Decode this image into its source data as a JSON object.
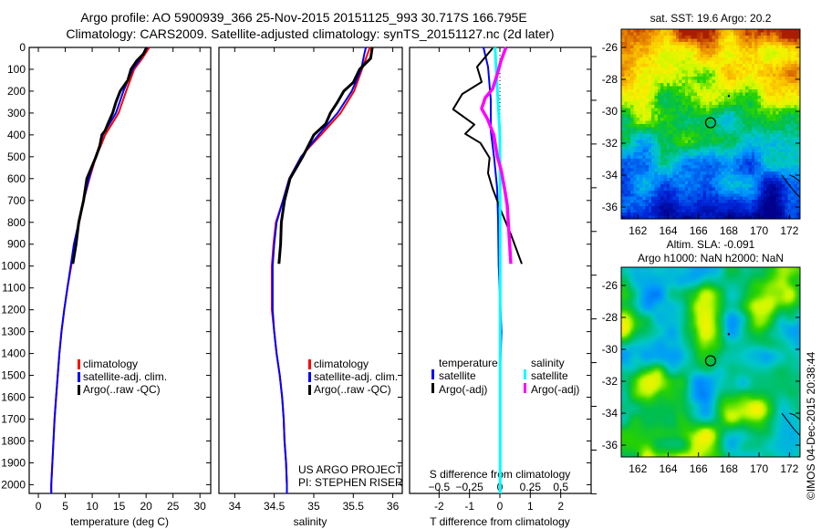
{
  "title": {
    "line1": "Argo profile: AO 5900939_366 25-Nov-2015 20151125_993 30.717S 166.795E",
    "line2": "Climatology: CARS2009. Satellite-adjusted climatology: synTS_20151127.nc (2d later)"
  },
  "colors": {
    "climatology": "#ff0000",
    "satellite": "#0000ff",
    "argo": "#000000",
    "sal_satellite": "#00ffff",
    "sal_argo": "#ff00ff"
  },
  "chart_data": [
    {
      "type": "line",
      "id": "temperature",
      "xlabel": "temperature (deg C)",
      "ylabel": "depth",
      "xlim": [
        -1.7,
        32
      ],
      "ylim": [
        0,
        2040
      ],
      "xticks": [
        0,
        5,
        10,
        15,
        20,
        25,
        30
      ],
      "yticks": [
        0,
        100,
        200,
        300,
        400,
        500,
        600,
        700,
        800,
        900,
        1000,
        1100,
        1200,
        1300,
        1400,
        1500,
        1600,
        1700,
        1800,
        1900,
        2000
      ],
      "legend": [
        "climatology",
        "satellite-adj. clim.",
        "Argo(..raw -QC)"
      ],
      "series": [
        {
          "name": "climatology",
          "color": "#ff0000",
          "depth": [
            0,
            50,
            100,
            200,
            300,
            400,
            450,
            500,
            600,
            700,
            800,
            900,
            1000,
            1100,
            1200,
            1300,
            1400,
            1500,
            1600,
            1700,
            1800,
            1900,
            2000,
            2040
          ],
          "values": [
            20.6,
            19.3,
            17.8,
            16.3,
            14.9,
            12.4,
            11.6,
            10.7,
            9.5,
            8.4,
            7.6,
            6.7,
            6.1,
            5.4,
            4.8,
            4.3,
            3.9,
            3.6,
            3.3,
            3.0,
            2.8,
            2.6,
            2.4,
            2.4
          ]
        },
        {
          "name": "satellite-adj. clim.",
          "color": "#0000ff",
          "depth": [
            0,
            50,
            100,
            200,
            300,
            400,
            450,
            500,
            600,
            700,
            800,
            900,
            1000,
            1100,
            1200,
            1300,
            1400,
            1500,
            1600,
            1700,
            1800,
            1900,
            2000,
            2040
          ],
          "values": [
            20.3,
            19.0,
            17.5,
            15.8,
            14.4,
            12.0,
            11.4,
            10.6,
            9.4,
            8.4,
            7.5,
            6.6,
            6.0,
            5.4,
            4.8,
            4.3,
            3.9,
            3.6,
            3.3,
            3.0,
            2.8,
            2.6,
            2.4,
            2.4
          ]
        },
        {
          "name": "Argo(..raw -QC)",
          "color": "#000000",
          "depth": [
            0,
            30,
            60,
            100,
            150,
            200,
            250,
            300,
            350,
            380,
            400,
            450,
            500,
            600,
            700,
            800,
            900,
            990
          ],
          "values": [
            20.1,
            19.5,
            18.3,
            17.2,
            16.6,
            15.2,
            14.4,
            13.8,
            12.9,
            12.4,
            11.8,
            11.4,
            10.7,
            9.0,
            8.4,
            7.5,
            7.0,
            6.4
          ]
        }
      ]
    },
    {
      "type": "line",
      "id": "salinity",
      "xlabel": "salinity",
      "xlim": [
        33.8,
        36.12
      ],
      "ylim": [
        0,
        2040
      ],
      "xticks": [
        "34",
        "34.5",
        "35",
        "35.5",
        "36"
      ],
      "legend": [
        "climatology",
        "satellite-adj. clim.",
        "Argo(..raw -QC)"
      ],
      "series": [
        {
          "name": "climatology",
          "color": "#ff0000",
          "depth": [
            0,
            100,
            200,
            300,
            400,
            450,
            500,
            600,
            700,
            800,
            900,
            1000,
            1100,
            1200,
            1300,
            1400,
            1500,
            1600,
            1700,
            1800,
            1900,
            2000,
            2040
          ],
          "values": [
            35.71,
            35.61,
            35.51,
            35.34,
            35.09,
            34.96,
            34.84,
            34.69,
            34.61,
            34.52,
            34.49,
            34.47,
            34.47,
            34.47,
            34.5,
            34.53,
            34.57,
            34.6,
            34.62,
            34.63,
            34.65,
            34.66,
            34.66
          ]
        },
        {
          "name": "satellite-adj. clim.",
          "color": "#0000ff",
          "depth": [
            0,
            30,
            100,
            200,
            300,
            400,
            450,
            500,
            600,
            700,
            800,
            900,
            1000,
            1100,
            1200,
            1300,
            1400,
            1500,
            1600,
            1700,
            1800,
            1900,
            2000,
            2040
          ],
          "values": [
            35.66,
            35.64,
            35.6,
            35.48,
            35.3,
            35.06,
            34.95,
            34.84,
            34.69,
            34.61,
            34.53,
            34.5,
            34.48,
            34.48,
            34.48,
            34.5,
            34.53,
            34.57,
            34.6,
            34.62,
            34.63,
            34.65,
            34.66,
            34.66
          ]
        },
        {
          "name": "Argo(..raw -QC)",
          "color": "#000000",
          "depth": [
            0,
            50,
            100,
            160,
            200,
            250,
            300,
            350,
            400,
            500,
            600,
            700,
            800,
            900,
            990
          ],
          "values": [
            35.74,
            35.72,
            35.58,
            35.5,
            35.38,
            35.3,
            35.21,
            35.15,
            35.0,
            34.86,
            34.7,
            34.63,
            34.59,
            34.58,
            34.56
          ]
        }
      ],
      "annotation": [
        "US ARGO PROJECT",
        "PI: STEPHEN RISER"
      ]
    },
    {
      "type": "line",
      "id": "difference",
      "xlabel": "T difference from climatology",
      "x2label": "S difference from climatology",
      "xlim": [
        -2.97,
        3.0
      ],
      "ylim": [
        0,
        2040
      ],
      "xticks": [
        "-2",
        "-1",
        "0",
        "1",
        "2"
      ],
      "x2ticks": [
        "-0.5",
        "-0.25",
        "0",
        "0.25",
        "0.5"
      ],
      "legend_temperature": {
        "title": "temperature",
        "items": [
          "satellite",
          "Argo(-adj)"
        ]
      },
      "legend_salinity": {
        "title": "salinity",
        "items": [
          "satellite",
          "Argo(-adj)"
        ]
      },
      "series": [
        {
          "name": "T satellite",
          "color": "#0000ff",
          "depth": [
            0,
            89,
            240,
            380,
            505,
            645,
            783,
            1000,
            1200,
            1300,
            1500,
            2040
          ],
          "values": [
            -0.54,
            -0.39,
            -0.3,
            -0.3,
            -0.19,
            -0.09,
            -0.06,
            -0.04,
            0.02,
            0.05,
            0.0,
            0.0
          ]
        },
        {
          "name": "T Argo(-adj)",
          "color": "#000000",
          "depth": [
            4,
            80,
            89,
            158,
            213,
            283,
            353,
            395,
            437,
            505,
            575,
            645,
            755,
            855,
            990
          ],
          "values": [
            -0.24,
            -0.7,
            -0.75,
            -0.6,
            -1.24,
            -1.54,
            -0.84,
            -1.14,
            -0.64,
            -0.34,
            -0.39,
            -0.24,
            0.06,
            0.36,
            0.72
          ]
        },
        {
          "name": "S satellite",
          "color": "#00ffff",
          "depth": [
            0,
            200,
            400,
            800,
            2040
          ],
          "values": [
            -0.04,
            -0.02,
            0.0,
            0.002,
            0.002
          ]
        },
        {
          "name": "S Argo(-adj)",
          "color": "#ff00ff",
          "depth": [
            0,
            60,
            120,
            190,
            230,
            280,
            330,
            400,
            500,
            560,
            650,
            720,
            900,
            990
          ],
          "values": [
            0.05,
            0.01,
            -0.02,
            -0.06,
            -0.12,
            -0.15,
            -0.1,
            -0.05,
            -0.02,
            0.01,
            0.04,
            0.06,
            0.08,
            0.09
          ]
        }
      ]
    },
    {
      "type": "heatmap",
      "id": "sst-map",
      "title": "sat. SST: 19.6 Argo: 20.2",
      "xlim": [
        160.9,
        172.7
      ],
      "ylim": [
        -36.74,
        -24.86
      ],
      "xticks": [
        "162",
        "164",
        "166",
        "168",
        "170",
        "172"
      ],
      "yticks": [
        "-26",
        "-28",
        "-30",
        "-32",
        "-34",
        "-36"
      ],
      "argo_position": [
        166.795,
        -30.717
      ]
    },
    {
      "type": "heatmap",
      "id": "sla-map",
      "title": "Altim. SLA: -0.091",
      "subtitle": "Argo h1000: NaN h2000: NaN",
      "xlim": [
        160.9,
        172.7
      ],
      "ylim": [
        -36.74,
        -24.86
      ],
      "xticks": [
        "162",
        "164",
        "166",
        "168",
        "170",
        "172"
      ],
      "yticks": [
        "-26",
        "-28",
        "-30",
        "-32",
        "-34",
        "-36"
      ],
      "argo_position": [
        166.795,
        -30.717
      ]
    }
  ],
  "footer": {
    "credit": "©IMOS 04-Dec-2015 20:38:44"
  }
}
